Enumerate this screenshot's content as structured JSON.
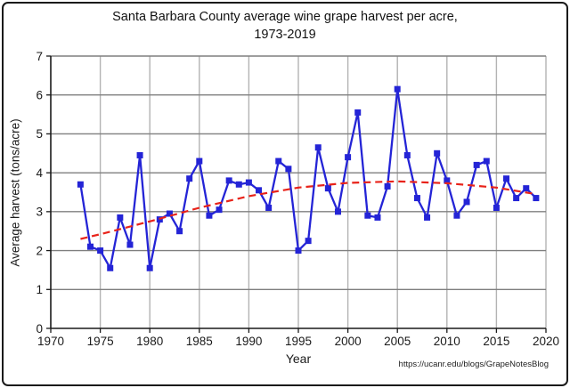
{
  "chart_data": {
    "type": "line",
    "title_line1": "Santa Barbara County average wine grape harvest per acre,",
    "title_line2": "1973-2019",
    "xlabel": "Year",
    "ylabel": "Average harvest (tons/acre)",
    "xlim": [
      1970,
      2020
    ],
    "ylim": [
      0,
      7
    ],
    "x_ticks": [
      1970,
      1975,
      1980,
      1985,
      1990,
      1995,
      2000,
      2005,
      2010,
      2015,
      2020
    ],
    "y_ticks": [
      0,
      1,
      2,
      3,
      4,
      5,
      6,
      7
    ],
    "grid": true,
    "legend": "none",
    "series": [
      {
        "name": "average-harvest",
        "marker": "square",
        "x": [
          1973,
          1974,
          1975,
          1976,
          1977,
          1978,
          1979,
          1980,
          1981,
          1982,
          1983,
          1984,
          1985,
          1986,
          1987,
          1988,
          1989,
          1990,
          1991,
          1992,
          1993,
          1994,
          1995,
          1996,
          1997,
          1998,
          1999,
          2000,
          2001,
          2002,
          2003,
          2004,
          2005,
          2006,
          2007,
          2008,
          2009,
          2010,
          2011,
          2012,
          2013,
          2014,
          2015,
          2016,
          2017,
          2018,
          2019
        ],
        "values": [
          3.7,
          2.1,
          2.0,
          1.55,
          2.85,
          2.15,
          4.45,
          1.55,
          2.8,
          2.95,
          2.5,
          3.85,
          4.3,
          2.9,
          3.05,
          3.8,
          3.7,
          3.75,
          3.55,
          3.1,
          4.3,
          4.1,
          2.0,
          2.25,
          4.65,
          3.6,
          3.0,
          4.4,
          5.55,
          2.9,
          2.85,
          3.65,
          6.15,
          4.45,
          3.35,
          2.85,
          4.5,
          3.8,
          2.9,
          3.25,
          4.2,
          4.3,
          3.1,
          3.85,
          3.35,
          3.6,
          3.35
        ]
      }
    ],
    "trendline": {
      "name": "polynomial-trend",
      "style": "dashed",
      "x": [
        1973,
        1975,
        1980,
        1985,
        1990,
        1995,
        2000,
        2005,
        2010,
        2015,
        2019
      ],
      "values": [
        2.3,
        2.42,
        2.75,
        3.1,
        3.4,
        3.62,
        3.74,
        3.78,
        3.73,
        3.62,
        3.45
      ]
    }
  },
  "footer": {
    "source_url": "https://ucanr.edu/blogs/GrapeNotesBlog"
  },
  "colors": {
    "line": "#2424d6",
    "trend": "#e8231a",
    "grid_h": "#7f7f7f",
    "grid_v": "#b3b3b3",
    "axis": "#1a1a1a",
    "text": "#1a1a1a"
  }
}
